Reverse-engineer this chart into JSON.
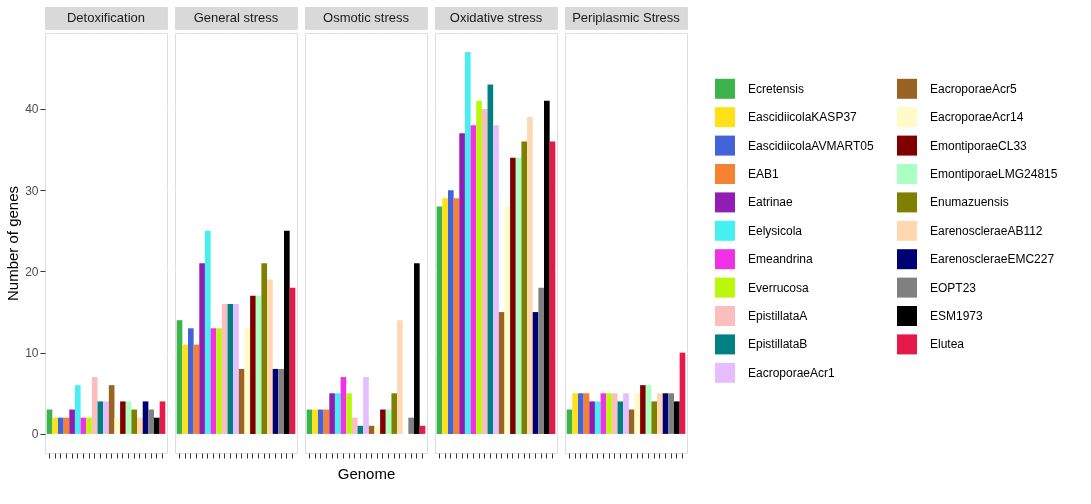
{
  "chart_data": {
    "type": "bar",
    "categories": [
      "Detoxification",
      "General stress",
      "Osmotic stress",
      "Oxidative stress",
      "Periplasmic Stress"
    ],
    "xlabel": "Genome",
    "ylabel": "Number of genes",
    "ylim": [
      -2.35,
      49.35
    ],
    "yticks": [
      0,
      10,
      20,
      30,
      40
    ],
    "grid": true,
    "legend": "right",
    "series": [
      {
        "name": "Ecretensis",
        "color": "#3cb44b",
        "values": [
          3,
          14,
          3,
          28,
          3
        ]
      },
      {
        "name": "EascidiicolaKASP37",
        "color": "#ffe119",
        "values": [
          2,
          11,
          3,
          29,
          5
        ]
      },
      {
        "name": "EascidiicolaAVMART05",
        "color": "#4363d8",
        "values": [
          2,
          13,
          3,
          30,
          5
        ]
      },
      {
        "name": "EAB1",
        "color": "#f58231",
        "values": [
          2,
          11,
          3,
          29,
          5
        ]
      },
      {
        "name": "Eatrinae",
        "color": "#911eb4",
        "values": [
          3,
          21,
          5,
          37,
          4
        ]
      },
      {
        "name": "Eelysicola",
        "color": "#46f0f0",
        "values": [
          6,
          25,
          5,
          47,
          4
        ]
      },
      {
        "name": "Emeandrina",
        "color": "#f032e6",
        "values": [
          2,
          13,
          7,
          38,
          5
        ]
      },
      {
        "name": "Everrucosa",
        "color": "#bcf60c",
        "values": [
          2,
          13,
          5,
          41,
          5
        ]
      },
      {
        "name": "EpistillataA",
        "color": "#fabebe",
        "values": [
          7,
          16,
          2,
          40,
          5
        ]
      },
      {
        "name": "EpistillataB",
        "color": "#008080",
        "values": [
          4,
          16,
          1,
          43,
          4
        ]
      },
      {
        "name": "EacroporaeAcr1",
        "color": "#e6beff",
        "values": [
          4,
          16,
          7,
          38,
          5
        ]
      },
      {
        "name": "EacroporaeAcr5",
        "color": "#9a6324",
        "values": [
          6,
          8,
          1,
          15,
          3
        ]
      },
      {
        "name": "EacroporaeAcr14",
        "color": "#fffac8",
        "values": [
          2,
          13,
          1,
          28,
          5
        ]
      },
      {
        "name": "EmontiporaeCL33",
        "color": "#800000",
        "values": [
          4,
          17,
          3,
          34,
          6
        ]
      },
      {
        "name": "EmontiporaeLMG24815",
        "color": "#aaffc3",
        "values": [
          4,
          17,
          3,
          34,
          6
        ]
      },
      {
        "name": "Enumazuensis",
        "color": "#808000",
        "values": [
          3,
          21,
          5,
          36,
          4
        ]
      },
      {
        "name": "EarenoscleraeAB112",
        "color": "#ffd8b1",
        "values": [
          2,
          19,
          14,
          39,
          5
        ]
      },
      {
        "name": "EarenoscleraeEMC227",
        "color": "#000075",
        "values": [
          4,
          8,
          0,
          15,
          5
        ]
      },
      {
        "name": "EOPT23",
        "color": "#808080",
        "values": [
          3,
          8,
          2,
          18,
          5
        ]
      },
      {
        "name": "ESM1973",
        "color": "#000000",
        "values": [
          2,
          25,
          21,
          41,
          4
        ]
      },
      {
        "name": "Elutea",
        "color": "#e6194b",
        "values": [
          4,
          18,
          1,
          36,
          10
        ]
      }
    ]
  }
}
